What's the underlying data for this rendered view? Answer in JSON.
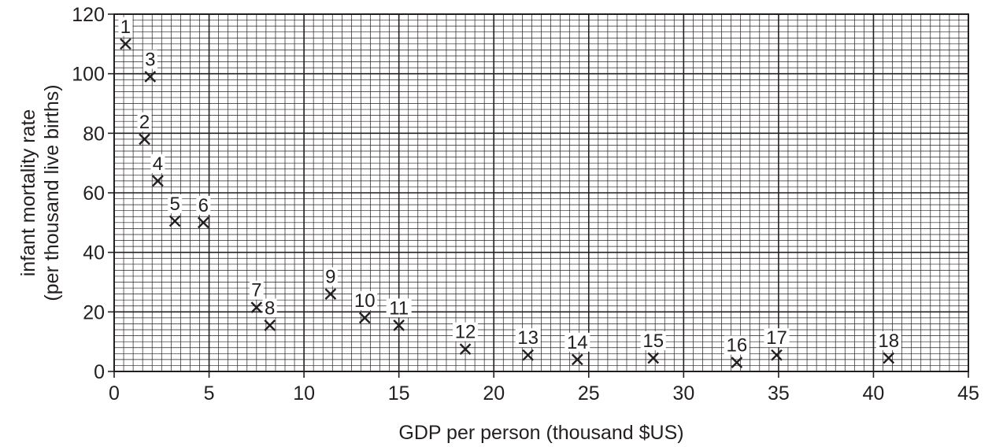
{
  "colors": {
    "ink": "#231f20",
    "grid_minor": "#231f20",
    "background": "#ffffff"
  },
  "chart_data": {
    "type": "scatter",
    "title": "",
    "xlabel": "GDP per person (thousand $US)",
    "ylabel_line1": "infant mortality rate",
    "ylabel_line2": "(per thousand live births)",
    "xlim": [
      0,
      45
    ],
    "ylim": [
      0,
      120
    ],
    "x_major_step": 5,
    "y_major_step": 20,
    "x_minor_step": 0.5,
    "y_minor_step": 2,
    "grid": true,
    "marker": "x",
    "xticks": [
      "0",
      "5",
      "10",
      "15",
      "20",
      "25",
      "30",
      "35",
      "40",
      "45"
    ],
    "yticks": [
      "0",
      "20",
      "40",
      "60",
      "80",
      "100",
      "120"
    ],
    "points": [
      {
        "label": "1",
        "x": 0.6,
        "y": 110
      },
      {
        "label": "2",
        "x": 1.6,
        "y": 78
      },
      {
        "label": "3",
        "x": 1.9,
        "y": 99
      },
      {
        "label": "4",
        "x": 2.3,
        "y": 64
      },
      {
        "label": "5",
        "x": 3.2,
        "y": 50.5
      },
      {
        "label": "6",
        "x": 4.7,
        "y": 50
      },
      {
        "label": "7",
        "x": 7.5,
        "y": 21.5
      },
      {
        "label": "8",
        "x": 8.2,
        "y": 15.5
      },
      {
        "label": "9",
        "x": 11.4,
        "y": 26
      },
      {
        "label": "10",
        "x": 13.2,
        "y": 18
      },
      {
        "label": "11",
        "x": 15.0,
        "y": 15.5
      },
      {
        "label": "12",
        "x": 18.5,
        "y": 7.5
      },
      {
        "label": "13",
        "x": 21.8,
        "y": 5.5
      },
      {
        "label": "14",
        "x": 24.4,
        "y": 4
      },
      {
        "label": "15",
        "x": 28.4,
        "y": 4.5
      },
      {
        "label": "16",
        "x": 32.8,
        "y": 3
      },
      {
        "label": "17",
        "x": 34.9,
        "y": 5.5
      },
      {
        "label": "18",
        "x": 40.8,
        "y": 4.5
      }
    ]
  }
}
